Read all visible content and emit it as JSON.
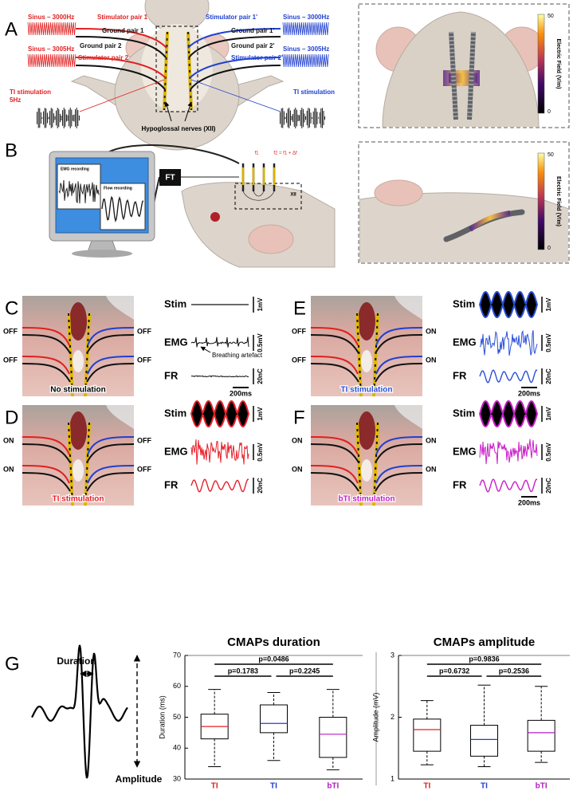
{
  "panel_a": {
    "letter": "A",
    "left_signals": [
      "Sinus – 3000Hz",
      "Sinus – 3005Hz"
    ],
    "right_signals": [
      "Sinus – 3000Hz",
      "Sinus – 3005Hz"
    ],
    "left_labels": [
      "Stimulator pair 1",
      "Ground pair 1",
      "Ground pair 2",
      "Stimulator pair 2"
    ],
    "right_labels": [
      "Stimulator pair 1'",
      "Ground pair 1'",
      "Ground pair 2'",
      "Stimulator pair 2'"
    ],
    "left_ti": [
      "TI stimulation",
      "5Hz"
    ],
    "right_ti": "TI stimulation",
    "nerve_label": "Hypoglossal nerves (XII)",
    "colorbar": {
      "label": "Electric Field (V/m)",
      "max": 50,
      "min": 0
    }
  },
  "panel_b": {
    "letter": "B",
    "emg_window": "EMG recording",
    "flow_window": "Flow recording",
    "transducer": "FT",
    "electrode_1": "f1",
    "electrode_2": "f2 = f1 + Δf",
    "nerve": "XII",
    "colorbar": {
      "label": "Electric Field (V/m)",
      "max": 50,
      "min": 0
    }
  },
  "stim_panels": [
    {
      "letter": "C",
      "left_switches": [
        "OFF",
        "OFF"
      ],
      "right_switches": [
        "OFF",
        "OFF"
      ],
      "caption": "No stimulation",
      "color": "#111111",
      "traces": [
        "Stim",
        "EMG",
        "FR"
      ],
      "scale_bars": [
        "1mV",
        "0.5mV",
        "20nC"
      ],
      "time_bar": "200ms",
      "annotation": "Breathing artefact"
    },
    {
      "letter": "D",
      "left_switches": [
        "ON",
        "ON"
      ],
      "right_switches": [
        "OFF",
        "OFF"
      ],
      "caption": "TI stimulation",
      "color": "#e8202a",
      "traces": [
        "Stim",
        "EMG",
        "FR"
      ],
      "scale_bars": [
        "1mV",
        "0.5mV",
        "20nC"
      ]
    },
    {
      "letter": "E",
      "left_switches": [
        "OFF",
        "OFF"
      ],
      "right_switches": [
        "ON",
        "ON"
      ],
      "caption": "TI stimulation",
      "color": "#2a4fd6",
      "traces": [
        "Stim",
        "EMG",
        "FR"
      ],
      "scale_bars": [
        "1mV",
        "0.5mV",
        "20nC"
      ],
      "time_bar": "200ms"
    },
    {
      "letter": "F",
      "left_switches": [
        "ON",
        "ON"
      ],
      "right_switches": [
        "ON",
        "ON"
      ],
      "caption": "bTI stimulation",
      "color": "#c81ec8",
      "traces": [
        "Stim",
        "EMG",
        "FR"
      ],
      "scale_bars": [
        "1mV",
        "0.5mV",
        "20nC"
      ],
      "time_bar": "200ms"
    }
  ],
  "panel_g": {
    "letter": "G",
    "duration_label": "Duration",
    "amplitude_label": "Amplitude"
  },
  "chart_data": [
    {
      "type": "box",
      "title": "CMAPs duration",
      "ylabel": "Duration (ms)",
      "categories": [
        "TI",
        "TI",
        "bTI"
      ],
      "colors": [
        "#e02020",
        "#2040d0",
        "#b020c0"
      ],
      "boxes": [
        {
          "low": 34,
          "q1": 43,
          "median": 47,
          "q3": 51,
          "high": 59
        },
        {
          "low": 36,
          "q1": 45,
          "median": 48,
          "q3": 54,
          "high": 58
        },
        {
          "low": 33,
          "q1": 37,
          "median": 44.5,
          "q3": 50,
          "high": 59
        }
      ],
      "comparisons": [
        "p=0.0486",
        "p=0.1783",
        "p=0.2245"
      ],
      "ylim": [
        30,
        70
      ],
      "yticks": [
        30,
        40,
        50,
        60,
        70
      ]
    },
    {
      "type": "box",
      "title": "CMAPs amplitude",
      "ylabel": "Amplitude (mV)",
      "categories": [
        "TI",
        "TI",
        "bTI"
      ],
      "colors": [
        "#e02020",
        "#2040d0",
        "#b020c0"
      ],
      "boxes": [
        {
          "low": 1.23,
          "q1": 1.45,
          "median": 1.8,
          "q3": 1.97,
          "high": 2.27
        },
        {
          "low": 1.2,
          "q1": 1.37,
          "median": 1.64,
          "q3": 1.87,
          "high": 2.52
        },
        {
          "low": 1.27,
          "q1": 1.45,
          "median": 1.75,
          "q3": 1.95,
          "high": 2.5
        }
      ],
      "comparisons": [
        "p=0.9836",
        "p=0.6732",
        "p=0.2536"
      ],
      "ylim": [
        1,
        3
      ],
      "yticks": [
        1,
        2,
        3
      ]
    }
  ]
}
